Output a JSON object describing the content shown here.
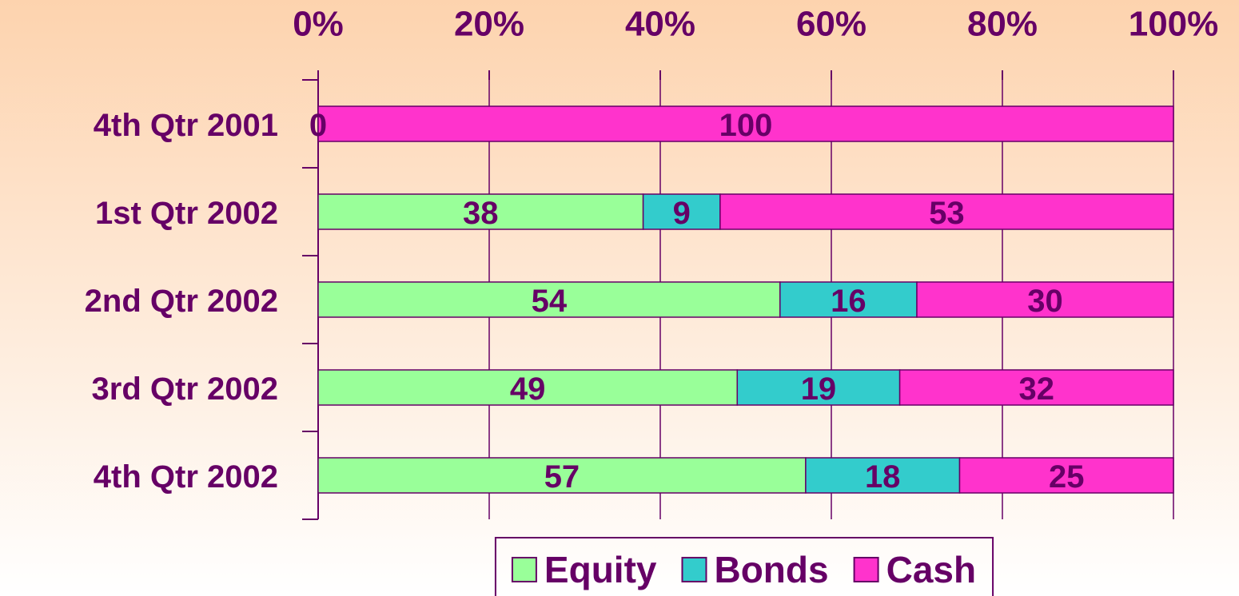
{
  "chart_data": {
    "type": "stacked-bar-horizontal",
    "categories": [
      "4th Qtr 2001",
      "1st Qtr 2002",
      "2nd Qtr 2002",
      "3rd Qtr 2002",
      "4th Qtr 2002"
    ],
    "series": [
      {
        "name": "Equity",
        "color": "#99ff99",
        "values": [
          0,
          38,
          54,
          49,
          57
        ]
      },
      {
        "name": "Bonds",
        "color": "#33cccc",
        "values": [
          0,
          9,
          16,
          19,
          18
        ],
        "value_labels": [
          null,
          "9",
          "16",
          "19",
          "18"
        ]
      },
      {
        "name": "Cash",
        "color": "#ff33cc",
        "values": [
          100,
          53,
          30,
          32,
          25
        ]
      }
    ],
    "xlim": [
      0,
      100
    ],
    "xticks": [
      {
        "value": 0,
        "label": "0%"
      },
      {
        "value": 20,
        "label": "20%"
      },
      {
        "value": 40,
        "label": "40%"
      },
      {
        "value": 60,
        "label": "60%"
      },
      {
        "value": 80,
        "label": "80%"
      },
      {
        "value": 100,
        "label": "100%"
      }
    ],
    "grid": true,
    "legend": "bottom"
  }
}
